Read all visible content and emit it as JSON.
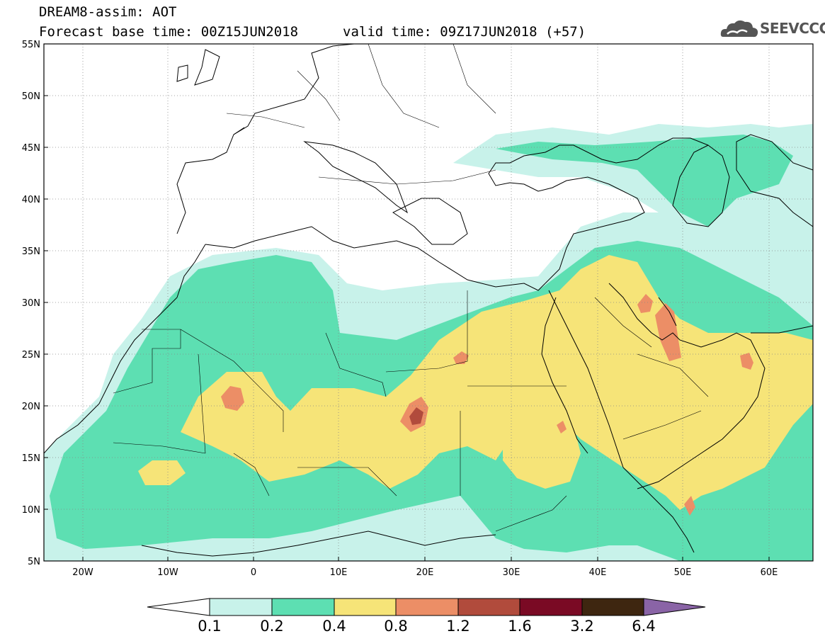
{
  "header": {
    "title": "DREAM8-assim: AOT",
    "base_time": "Forecast base time: 00Z15JUN2018",
    "valid_time": "valid time: 09Z17JUN2018 (+57)",
    "logo_text": "SEEVCCC"
  },
  "map": {
    "lon_range": [
      -25,
      65
    ],
    "lat_range": [
      5,
      55
    ],
    "lat_ticks": [
      "5N",
      "10N",
      "15N",
      "20N",
      "25N",
      "30N",
      "35N",
      "40N",
      "45N",
      "50N",
      "55N"
    ],
    "lon_ticks": [
      "20W",
      "10W",
      "0",
      "10E",
      "20E",
      "30E",
      "40E",
      "50E",
      "60E"
    ],
    "grid": "dotted"
  },
  "colorbar": {
    "levels": [
      "0.1",
      "0.2",
      "0.4",
      "0.8",
      "1.2",
      "1.6",
      "3.2",
      "6.4"
    ],
    "colors": [
      "#c8f2ea",
      "#5ddfb2",
      "#f6e478",
      "#ec8e66",
      "#b14b3c",
      "#7a0a24",
      "#3e2610",
      "#8a64a6"
    ]
  }
}
